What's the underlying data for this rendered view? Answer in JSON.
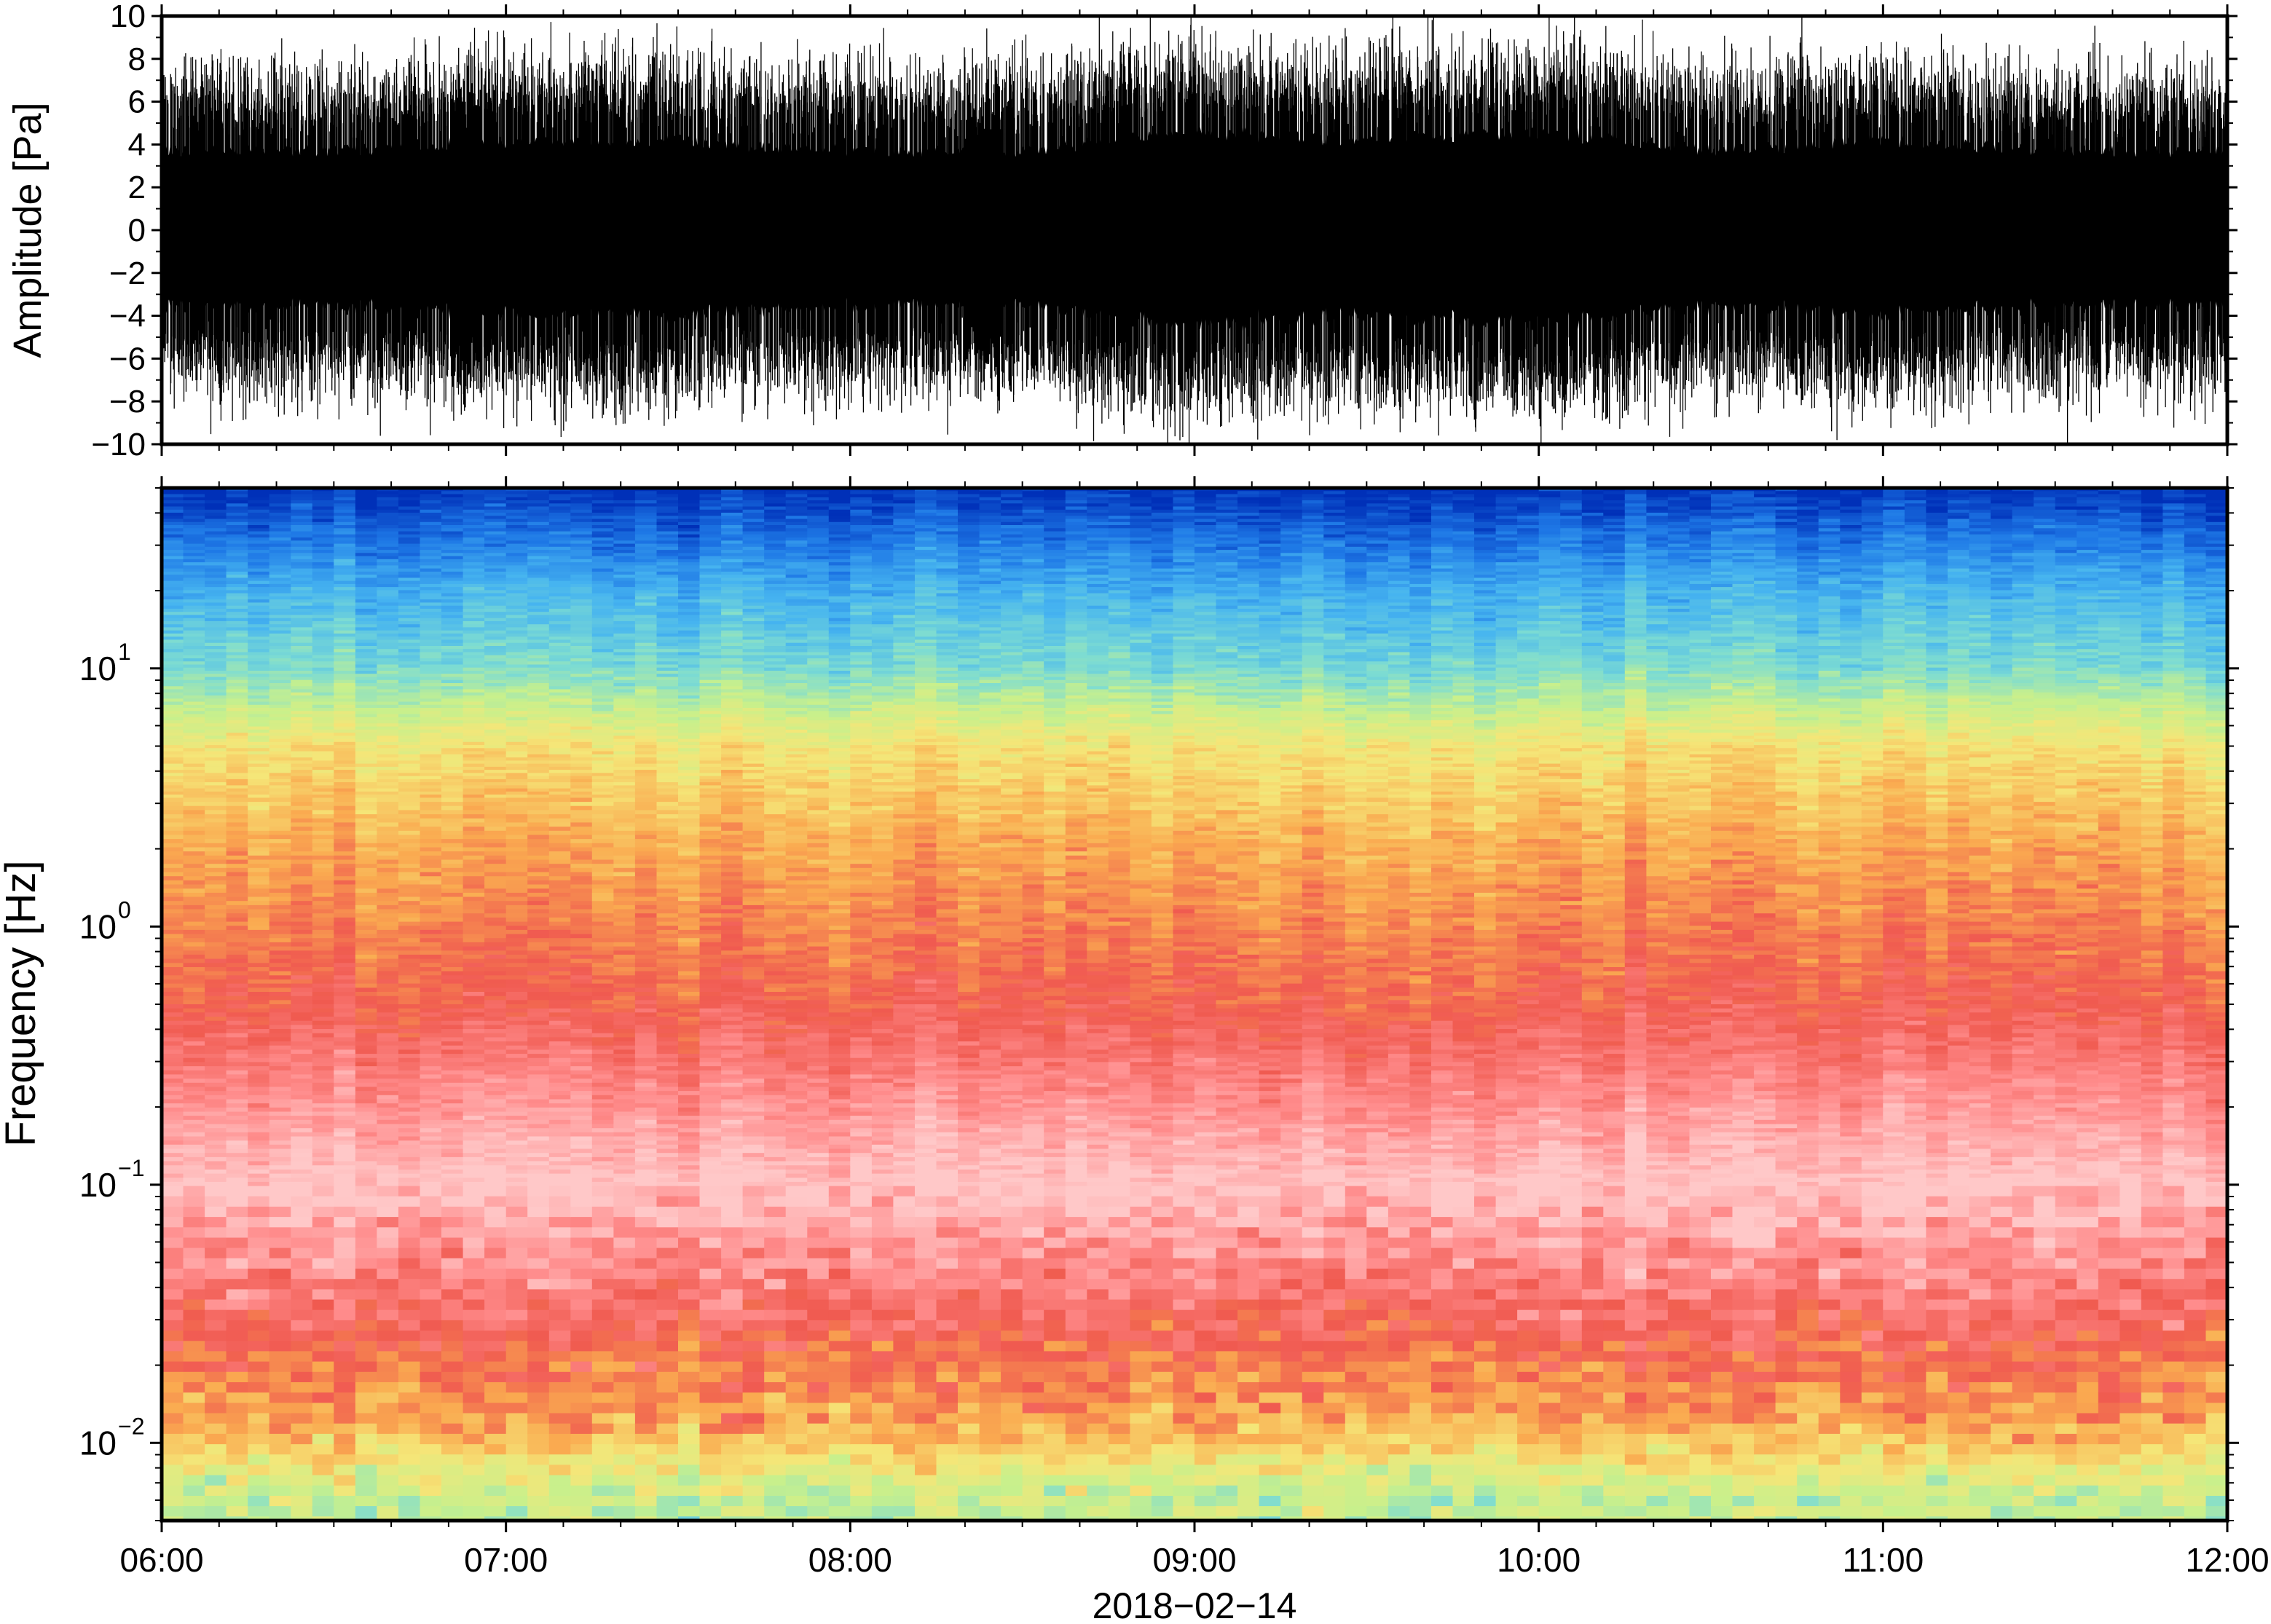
{
  "chart_data": [
    {
      "type": "line",
      "panel": "waveform",
      "ylabel": "Amplitude [Pa]",
      "ylim": [
        -10,
        10
      ],
      "yticks": [
        "10",
        "8",
        "6",
        "4",
        "2",
        "0",
        "−2",
        "−4",
        "−6",
        "−8",
        "−10"
      ],
      "ytick_values": [
        10,
        8,
        6,
        4,
        2,
        0,
        -2,
        -4,
        -6,
        -8,
        -10
      ],
      "xlim": [
        "06:00",
        "12:00"
      ],
      "series": [
        {
          "x": [
            "06:00",
            "06:30",
            "07:00",
            "07:30",
            "08:00",
            "08:30",
            "09:00",
            "09:30",
            "10:00",
            "10:30",
            "11:00",
            "11:30",
            "12:00"
          ],
          "envelope_typical": [
            4,
            4,
            4.5,
            4.5,
            4,
            4,
            5,
            4.5,
            5,
            4,
            4.5,
            4,
            4
          ],
          "peak": [
            10,
            10,
            10,
            10,
            10,
            10,
            10,
            10,
            10,
            10,
            10,
            10,
            10
          ]
        }
      ],
      "line_color": "#000000"
    },
    {
      "type": "heatmap",
      "panel": "spectrogram",
      "ylabel": "Frequency [Hz]",
      "yscale": "log",
      "ylim": [
        0.005,
        50
      ],
      "yticks": [
        {
          "base": "10",
          "exp": "1",
          "value": 10
        },
        {
          "base": "10",
          "exp": "0",
          "value": 1
        },
        {
          "base": "10",
          "exp": "−1",
          "value": 0.1
        },
        {
          "base": "10",
          "exp": "−2",
          "value": 0.01
        }
      ],
      "xlabel": "2018−02−14",
      "xticks": [
        "06:00",
        "07:00",
        "08:00",
        "09:00",
        "10:00",
        "11:00",
        "12:00"
      ],
      "xlim": [
        "06:00",
        "12:00"
      ],
      "colormap": [
        "#0030b8",
        "#1e78e6",
        "#46b4f0",
        "#7ddcd2",
        "#c8f08c",
        "#f5e678",
        "#faaa50",
        "#f05a50",
        "#ff8c8c",
        "#ffc8c8"
      ],
      "dominant_colors_by_frequency_hz": [
        {
          "frequency": 50,
          "color": "#0030b8"
        },
        {
          "frequency": 20,
          "color": "#46b4f0"
        },
        {
          "frequency": 10,
          "color": "#7ddcd2"
        },
        {
          "frequency": 5,
          "color": "#f5e678"
        },
        {
          "frequency": 2,
          "color": "#faaa50"
        },
        {
          "frequency": 0.5,
          "color": "#f05a50"
        },
        {
          "frequency": 0.1,
          "color": "#ffc8c8"
        },
        {
          "frequency": 0.025,
          "color": "#f05a50"
        },
        {
          "frequency": 0.012,
          "color": "#faaa50"
        },
        {
          "frequency": 0.006,
          "color": "#c8f08c"
        }
      ]
    }
  ]
}
